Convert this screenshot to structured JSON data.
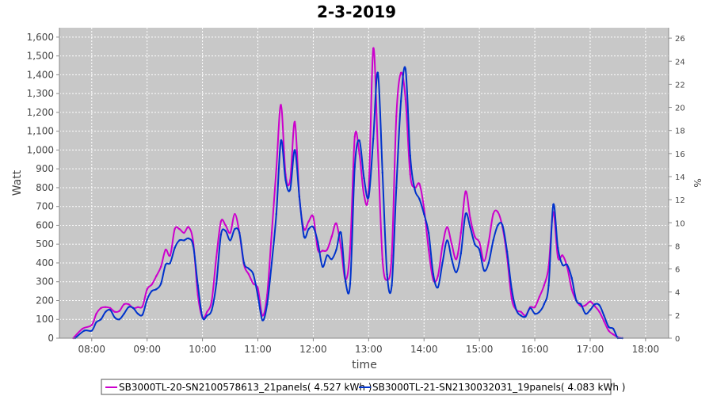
{
  "chart_data": {
    "type": "line",
    "title": "2-3-2019",
    "xlabel": "time",
    "ylabel": "Watt",
    "y2label": "%",
    "xlim": [
      "07:25",
      "18:25"
    ],
    "ylim": [
      0,
      1650
    ],
    "y2lim": [
      0,
      26.9
    ],
    "xticks": [
      "08:00",
      "09:00",
      "10:00",
      "11:00",
      "12:00",
      "13:00",
      "14:00",
      "15:00",
      "16:00",
      "17:00",
      "18:00"
    ],
    "yticks": [
      "0",
      "100",
      "200",
      "300",
      "400",
      "500",
      "600",
      "700",
      "800",
      "900",
      "1,000",
      "1,100",
      "1,200",
      "1,300",
      "1,400",
      "1,500",
      "1,600"
    ],
    "y2ticks": [
      "0",
      "2",
      "4",
      "6",
      "8",
      "10",
      "12",
      "14",
      "16",
      "18",
      "20",
      "22",
      "24",
      "26"
    ],
    "grid": true,
    "legend_position": "bottom",
    "background": "#c8c8c8",
    "series": [
      {
        "name": "SB3000TL-20-SN2100578613_21panels( 4.527 kWh )",
        "color": "#cc00cc",
        "points": [
          [
            "07:40",
            0
          ],
          [
            "07:50",
            50
          ],
          [
            "08:00",
            70
          ],
          [
            "08:05",
            130
          ],
          [
            "08:10",
            160
          ],
          [
            "08:15",
            165
          ],
          [
            "08:20",
            160
          ],
          [
            "08:25",
            140
          ],
          [
            "08:30",
            145
          ],
          [
            "08:35",
            180
          ],
          [
            "08:40",
            180
          ],
          [
            "08:45",
            160
          ],
          [
            "08:50",
            165
          ],
          [
            "08:55",
            170
          ],
          [
            "09:00",
            260
          ],
          [
            "09:05",
            285
          ],
          [
            "09:10",
            330
          ],
          [
            "09:15",
            380
          ],
          [
            "09:20",
            470
          ],
          [
            "09:25",
            440
          ],
          [
            "09:30",
            580
          ],
          [
            "09:35",
            580
          ],
          [
            "09:40",
            560
          ],
          [
            "09:45",
            590
          ],
          [
            "09:50",
            510
          ],
          [
            "09:55",
            230
          ],
          [
            "10:00",
            110
          ],
          [
            "10:05",
            140
          ],
          [
            "10:10",
            200
          ],
          [
            "10:15",
            430
          ],
          [
            "10:20",
            620
          ],
          [
            "10:25",
            600
          ],
          [
            "10:30",
            560
          ],
          [
            "10:35",
            660
          ],
          [
            "10:40",
            560
          ],
          [
            "10:45",
            390
          ],
          [
            "10:50",
            340
          ],
          [
            "10:55",
            290
          ],
          [
            "11:00",
            265
          ],
          [
            "11:05",
            120
          ],
          [
            "11:10",
            230
          ],
          [
            "11:15",
            560
          ],
          [
            "11:20",
            900
          ],
          [
            "11:25",
            1240
          ],
          [
            "11:30",
            870
          ],
          [
            "11:35",
            840
          ],
          [
            "11:40",
            1150
          ],
          [
            "11:45",
            750
          ],
          [
            "11:50",
            580
          ],
          [
            "11:55",
            620
          ],
          [
            "12:00",
            645
          ],
          [
            "12:05",
            470
          ],
          [
            "12:10",
            465
          ],
          [
            "12:15",
            470
          ],
          [
            "12:20",
            540
          ],
          [
            "12:25",
            610
          ],
          [
            "12:30",
            480
          ],
          [
            "12:35",
            310
          ],
          [
            "12:40",
            480
          ],
          [
            "12:45",
            1070
          ],
          [
            "12:50",
            980
          ],
          [
            "12:55",
            760
          ],
          [
            "13:00",
            780
          ],
          [
            "13:05",
            1540
          ],
          [
            "13:10",
            1000
          ],
          [
            "13:15",
            420
          ],
          [
            "13:20",
            310
          ],
          [
            "13:25",
            440
          ],
          [
            "13:30",
            1180
          ],
          [
            "13:35",
            1410
          ],
          [
            "13:40",
            1270
          ],
          [
            "13:45",
            870
          ],
          [
            "13:50",
            800
          ],
          [
            "13:55",
            820
          ],
          [
            "14:00",
            690
          ],
          [
            "14:05",
            470
          ],
          [
            "14:10",
            310
          ],
          [
            "14:15",
            330
          ],
          [
            "14:20",
            490
          ],
          [
            "14:25",
            590
          ],
          [
            "14:30",
            500
          ],
          [
            "14:35",
            420
          ],
          [
            "14:40",
            560
          ],
          [
            "14:45",
            780
          ],
          [
            "14:50",
            640
          ],
          [
            "14:55",
            540
          ],
          [
            "15:00",
            510
          ],
          [
            "15:05",
            410
          ],
          [
            "15:10",
            510
          ],
          [
            "15:15",
            660
          ],
          [
            "15:20",
            670
          ],
          [
            "15:25",
            590
          ],
          [
            "15:30",
            430
          ],
          [
            "15:35",
            210
          ],
          [
            "15:40",
            150
          ],
          [
            "15:45",
            140
          ],
          [
            "15:50",
            120
          ],
          [
            "15:55",
            165
          ],
          [
            "16:00",
            165
          ],
          [
            "16:05",
            220
          ],
          [
            "16:10",
            280
          ],
          [
            "16:15",
            380
          ],
          [
            "16:20",
            670
          ],
          [
            "16:25",
            430
          ],
          [
            "16:30",
            440
          ],
          [
            "16:35",
            380
          ],
          [
            "16:40",
            260
          ],
          [
            "16:45",
            200
          ],
          [
            "16:50",
            170
          ],
          [
            "16:55",
            175
          ],
          [
            "17:00",
            195
          ],
          [
            "17:05",
            170
          ],
          [
            "17:10",
            140
          ],
          [
            "17:15",
            90
          ],
          [
            "17:20",
            40
          ],
          [
            "17:25",
            20
          ],
          [
            "17:30",
            5
          ],
          [
            "17:35",
            0
          ]
        ]
      },
      {
        "name": "SB3000TL-21-SN2130032031_19panels( 4.083 kWh )",
        "color": "#0033cc",
        "points": [
          [
            "07:42",
            0
          ],
          [
            "07:52",
            40
          ],
          [
            "08:00",
            40
          ],
          [
            "08:05",
            85
          ],
          [
            "08:10",
            100
          ],
          [
            "08:15",
            140
          ],
          [
            "08:20",
            150
          ],
          [
            "08:25",
            110
          ],
          [
            "08:30",
            100
          ],
          [
            "08:35",
            130
          ],
          [
            "08:40",
            165
          ],
          [
            "08:45",
            160
          ],
          [
            "08:50",
            130
          ],
          [
            "08:55",
            125
          ],
          [
            "09:00",
            205
          ],
          [
            "09:05",
            250
          ],
          [
            "09:10",
            260
          ],
          [
            "09:15",
            290
          ],
          [
            "09:20",
            390
          ],
          [
            "09:25",
            400
          ],
          [
            "09:30",
            480
          ],
          [
            "09:35",
            520
          ],
          [
            "09:40",
            520
          ],
          [
            "09:45",
            530
          ],
          [
            "09:50",
            490
          ],
          [
            "09:55",
            280
          ],
          [
            "10:00",
            110
          ],
          [
            "10:05",
            120
          ],
          [
            "10:10",
            150
          ],
          [
            "10:15",
            290
          ],
          [
            "10:20",
            550
          ],
          [
            "10:25",
            570
          ],
          [
            "10:30",
            520
          ],
          [
            "10:35",
            580
          ],
          [
            "10:40",
            560
          ],
          [
            "10:45",
            400
          ],
          [
            "10:50",
            370
          ],
          [
            "10:55",
            340
          ],
          [
            "11:00",
            225
          ],
          [
            "11:05",
            95
          ],
          [
            "11:10",
            180
          ],
          [
            "11:15",
            400
          ],
          [
            "11:20",
            660
          ],
          [
            "11:25",
            1050
          ],
          [
            "11:30",
            840
          ],
          [
            "11:35",
            790
          ],
          [
            "11:40",
            1000
          ],
          [
            "11:45",
            750
          ],
          [
            "11:50",
            540
          ],
          [
            "11:55",
            580
          ],
          [
            "12:00",
            590
          ],
          [
            "12:05",
            510
          ],
          [
            "12:10",
            380
          ],
          [
            "12:15",
            440
          ],
          [
            "12:20",
            420
          ],
          [
            "12:25",
            470
          ],
          [
            "12:30",
            560
          ],
          [
            "12:35",
            300
          ],
          [
            "12:40",
            290
          ],
          [
            "12:45",
            910
          ],
          [
            "12:50",
            1050
          ],
          [
            "12:55",
            850
          ],
          [
            "13:00",
            750
          ],
          [
            "13:05",
            1060
          ],
          [
            "13:10",
            1410
          ],
          [
            "13:15",
            880
          ],
          [
            "13:20",
            340
          ],
          [
            "13:25",
            280
          ],
          [
            "13:30",
            800
          ],
          [
            "13:35",
            1260
          ],
          [
            "13:40",
            1430
          ],
          [
            "13:45",
            970
          ],
          [
            "13:50",
            790
          ],
          [
            "13:55",
            740
          ],
          [
            "14:00",
            660
          ],
          [
            "14:05",
            560
          ],
          [
            "14:10",
            340
          ],
          [
            "14:15",
            270
          ],
          [
            "14:20",
            400
          ],
          [
            "14:25",
            520
          ],
          [
            "14:30",
            420
          ],
          [
            "14:35",
            350
          ],
          [
            "14:40",
            450
          ],
          [
            "14:45",
            660
          ],
          [
            "14:50",
            590
          ],
          [
            "14:55",
            500
          ],
          [
            "15:00",
            470
          ],
          [
            "15:05",
            360
          ],
          [
            "15:10",
            400
          ],
          [
            "15:15",
            520
          ],
          [
            "15:20",
            600
          ],
          [
            "15:25",
            600
          ],
          [
            "15:30",
            460
          ],
          [
            "15:35",
            260
          ],
          [
            "15:40",
            150
          ],
          [
            "15:45",
            120
          ],
          [
            "15:50",
            115
          ],
          [
            "15:55",
            160
          ],
          [
            "16:00",
            130
          ],
          [
            "16:05",
            140
          ],
          [
            "16:10",
            180
          ],
          [
            "16:15",
            280
          ],
          [
            "16:20",
            710
          ],
          [
            "16:25",
            480
          ],
          [
            "16:30",
            390
          ],
          [
            "16:35",
            390
          ],
          [
            "16:40",
            320
          ],
          [
            "16:45",
            200
          ],
          [
            "16:50",
            180
          ],
          [
            "16:55",
            130
          ],
          [
            "17:00",
            150
          ],
          [
            "17:05",
            180
          ],
          [
            "17:10",
            175
          ],
          [
            "17:15",
            120
          ],
          [
            "17:20",
            60
          ],
          [
            "17:25",
            50
          ],
          [
            "17:30",
            0
          ],
          [
            "17:35",
            0
          ]
        ]
      }
    ]
  }
}
